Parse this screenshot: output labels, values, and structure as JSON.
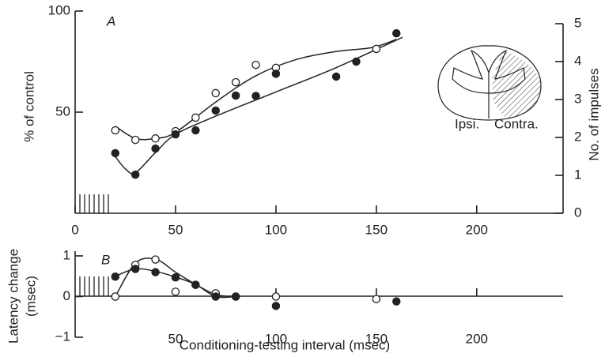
{
  "chart_data": [
    {
      "type": "scatter",
      "panel_label": "A",
      "ylabel": "% of control",
      "y2label": "No. of impulses",
      "xlim": [
        0,
        243
      ],
      "xticks": [
        0,
        50,
        100,
        150,
        200
      ],
      "ylim": [
        0,
        100
      ],
      "yticks": [
        50,
        100
      ],
      "y2lim": [
        0,
        5
      ],
      "y2ticks": [
        0,
        1,
        2,
        3,
        4,
        5
      ],
      "series": [
        {
          "marker": "open",
          "color": "#222",
          "x": [
            20,
            30,
            40,
            50,
            60,
            70,
            80,
            90,
            100,
            150
          ],
          "values": [
            41,
            36.3,
            37,
            40.6,
            47.3,
            59.4,
            64.8,
            73.4,
            71.9,
            81.3
          ]
        },
        {
          "marker": "filled",
          "color": "#222",
          "x": [
            20,
            30,
            40,
            50,
            60,
            70,
            80,
            90,
            100,
            130,
            140,
            160
          ],
          "values": [
            29.7,
            19.1,
            32,
            39,
            41,
            50.8,
            58.2,
            58,
            69,
            67.6,
            75,
            89
          ]
        }
      ],
      "fits": [
        {
          "x": [
            20,
            30,
            40,
            50,
            70,
            90,
            110,
            130,
            148,
            160
          ],
          "values": [
            43,
            37,
            37,
            40,
            55,
            68,
            76,
            80,
            82,
            86
          ]
        },
        {
          "x": [
            20,
            25,
            30,
            40,
            50,
            70,
            100,
            130,
            163
          ],
          "values": [
            28,
            22,
            20,
            30,
            39,
            48,
            60,
            72,
            87
          ]
        }
      ],
      "diagram_labels": [
        "Ipsi.",
        "Contra."
      ]
    },
    {
      "type": "scatter",
      "panel_label": "B",
      "ylabel": [
        "Latency change",
        "(msec)"
      ],
      "xlabel": "Conditioning-testing interval (msec)",
      "xlim": [
        0,
        243
      ],
      "xticks": [
        50,
        100,
        150,
        200
      ],
      "ylim": [
        -1,
        1
      ],
      "yticks": [
        {
          "value": -1,
          "label": "−1"
        },
        0,
        1
      ],
      "series": [
        {
          "marker": "open",
          "color": "#222",
          "x": [
            20,
            30,
            40,
            50,
            60,
            70,
            80,
            100,
            150
          ],
          "values": [
            0,
            0.78,
            0.91,
            0.12,
            0.29,
            0.08,
            0,
            0,
            -0.06
          ]
        },
        {
          "marker": "filled",
          "color": "#222",
          "x": [
            20,
            30,
            40,
            50,
            60,
            70,
            80,
            100,
            160
          ],
          "values": [
            0.49,
            0.68,
            0.6,
            0.47,
            0.29,
            0,
            0,
            -0.23,
            -0.12
          ]
        }
      ],
      "fits": [
        {
          "x": [
            20,
            30,
            40,
            50,
            60,
            70,
            80
          ],
          "values": [
            0,
            0.82,
            0.92,
            0.6,
            0.3,
            0.05,
            0
          ]
        },
        {
          "x": [
            20,
            30,
            40,
            50,
            60,
            70,
            80
          ],
          "values": [
            0.5,
            0.68,
            0.62,
            0.48,
            0.3,
            0,
            0
          ]
        }
      ]
    }
  ]
}
